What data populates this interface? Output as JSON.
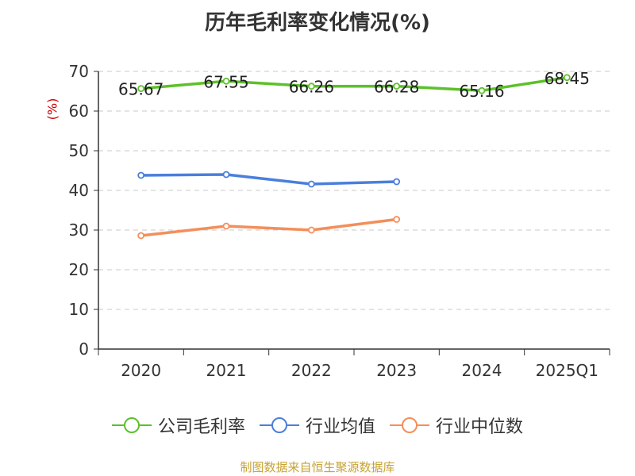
{
  "title": "历年毛利率变化情况(%)",
  "source": "制图数据来自恒生聚源数据库",
  "chart_data": {
    "type": "line",
    "title": "历年毛利率变化情况(%)",
    "ylabel": "(%)",
    "xlabel": "",
    "categories": [
      "2020",
      "2021",
      "2022",
      "2023",
      "2024",
      "2025Q1"
    ],
    "ylim": [
      0,
      70
    ],
    "yticks": [
      0,
      10,
      20,
      30,
      40,
      50,
      60,
      70
    ],
    "grid": true,
    "legend_position": "bottom",
    "series": [
      {
        "name": "公司毛利率",
        "color": "#5cc12b",
        "values": [
          65.67,
          67.55,
          66.26,
          66.28,
          65.16,
          68.45
        ],
        "labels": [
          "65.67",
          "67.55",
          "66.26",
          "66.28",
          "65.16",
          "68.45"
        ]
      },
      {
        "name": "行业均值",
        "color": "#4a7fdc",
        "values": [
          43.8,
          44.0,
          41.6,
          42.2,
          null,
          null
        ]
      },
      {
        "name": "行业中位数",
        "color": "#f48e5a",
        "values": [
          28.6,
          31.0,
          30.0,
          32.7,
          null,
          null
        ]
      }
    ]
  }
}
